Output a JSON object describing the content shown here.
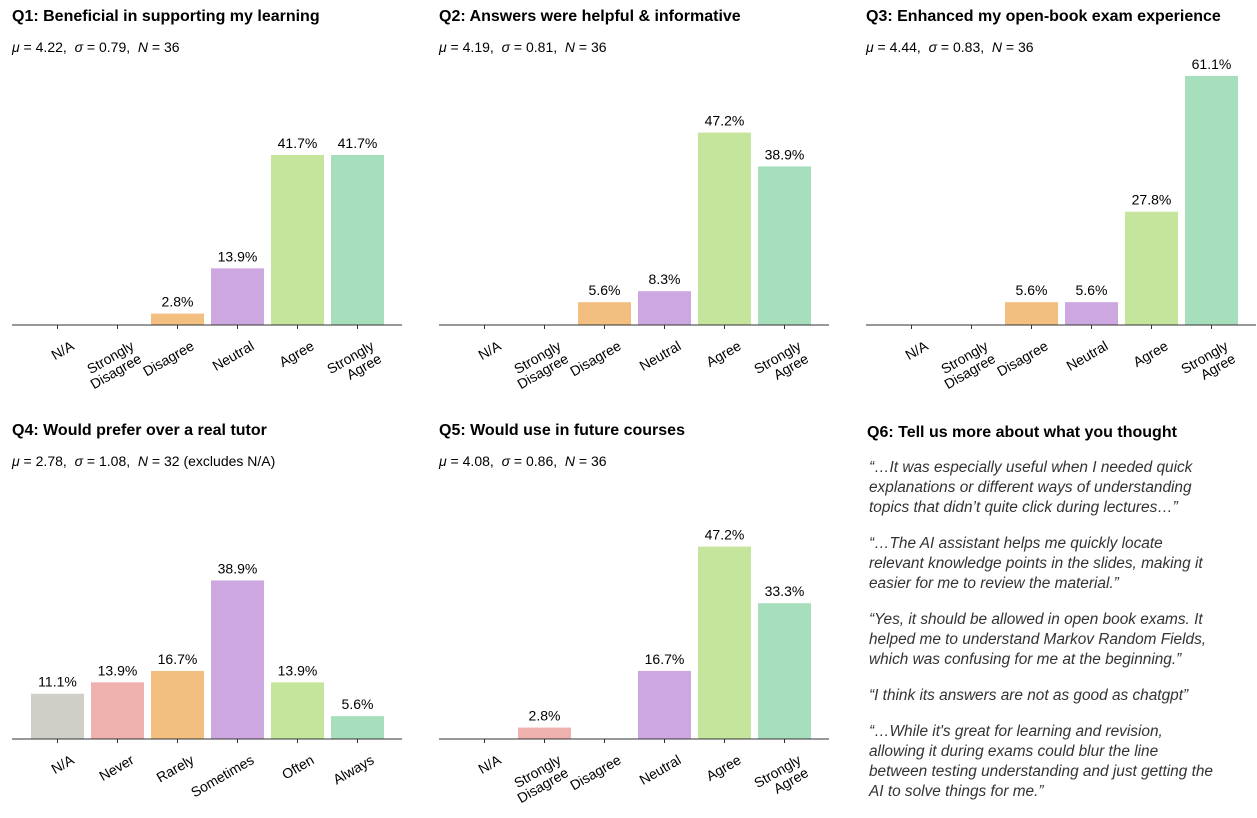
{
  "chart_data": [
    {
      "type": "bar",
      "title": "Q1: Beneficial in supporting my learning",
      "stats": {
        "mu": "4.22",
        "sigma": "0.79",
        "N": "36",
        "note": ""
      },
      "categories": [
        "N/A",
        "Strongly\nDisagree",
        "Disagree",
        "Neutral",
        "Agree",
        "Strongly\nAgree"
      ],
      "values": [
        0,
        0,
        2.8,
        13.9,
        41.7,
        41.7
      ],
      "value_labels": [
        "",
        "",
        "2.8%",
        "13.9%",
        "41.7%",
        "41.7%"
      ],
      "colors": [
        "#cfcfc8",
        "#eeb1ae",
        "#f2bf80",
        "#cda8e0",
        "#c6e59c",
        "#a7dfbc"
      ],
      "ylim": [
        0,
        65
      ],
      "grid": false,
      "legend": false
    },
    {
      "type": "bar",
      "title": "Q2: Answers were helpful & informative",
      "stats": {
        "mu": "4.19",
        "sigma": "0.81",
        "N": "36",
        "note": ""
      },
      "categories": [
        "N/A",
        "Strongly\nDisagree",
        "Disagree",
        "Neutral",
        "Agree",
        "Strongly\nAgree"
      ],
      "values": [
        0,
        0,
        5.6,
        8.3,
        47.2,
        38.9
      ],
      "value_labels": [
        "",
        "",
        "5.6%",
        "8.3%",
        "47.2%",
        "38.9%"
      ],
      "colors": [
        "#cfcfc8",
        "#eeb1ae",
        "#f2bf80",
        "#cda8e0",
        "#c6e59c",
        "#a7dfbc"
      ],
      "ylim": [
        0,
        65
      ],
      "grid": false,
      "legend": false
    },
    {
      "type": "bar",
      "title": "Q3: Enhanced my open-book exam experience",
      "stats": {
        "mu": "4.44",
        "sigma": "0.83",
        "N": "36",
        "note": ""
      },
      "categories": [
        "N/A",
        "Strongly\nDisagree",
        "Disagree",
        "Neutral",
        "Agree",
        "Strongly\nAgree"
      ],
      "values": [
        0,
        0,
        5.6,
        5.6,
        27.8,
        61.1
      ],
      "value_labels": [
        "",
        "",
        "5.6%",
        "5.6%",
        "27.8%",
        "61.1%"
      ],
      "colors": [
        "#cfcfc8",
        "#eeb1ae",
        "#f2bf80",
        "#cda8e0",
        "#c6e59c",
        "#a7dfbc"
      ],
      "ylim": [
        0,
        65
      ],
      "grid": false,
      "legend": false
    },
    {
      "type": "bar",
      "title": "Q4: Would prefer over a real tutor",
      "stats": {
        "mu": "2.78",
        "sigma": "1.08",
        "N": "32",
        "note": "(excludes N/A)"
      },
      "categories": [
        "N/A",
        "Never",
        "Rarely",
        "Sometimes",
        "Often",
        "Always"
      ],
      "values": [
        11.1,
        13.9,
        16.7,
        38.9,
        13.9,
        5.6
      ],
      "value_labels": [
        "11.1%",
        "13.9%",
        "16.7%",
        "38.9%",
        "13.9%",
        "5.6%"
      ],
      "colors": [
        "#cfcfc8",
        "#eeb1ae",
        "#f2bf80",
        "#cda8e0",
        "#c6e59c",
        "#a7dfbc"
      ],
      "ylim": [
        0,
        65
      ],
      "grid": false,
      "legend": false
    },
    {
      "type": "bar",
      "title": "Q5: Would use in future courses",
      "stats": {
        "mu": "4.08",
        "sigma": "0.86",
        "N": "36",
        "note": ""
      },
      "categories": [
        "N/A",
        "Strongly\nDisagree",
        "Disagree",
        "Neutral",
        "Agree",
        "Strongly\nAgree"
      ],
      "values": [
        0,
        2.8,
        0,
        16.7,
        47.2,
        33.3
      ],
      "value_labels": [
        "",
        "2.8%",
        "",
        "16.7%",
        "47.2%",
        "33.3%"
      ],
      "colors": [
        "#cfcfc8",
        "#eeb1ae",
        "#f2bf80",
        "#cda8e0",
        "#c6e59c",
        "#a7dfbc"
      ],
      "ylim": [
        0,
        65
      ],
      "grid": false,
      "legend": false
    }
  ],
  "q6": {
    "title": "Q6: Tell us more about what you thought",
    "quotes": [
      "“…It was especially useful when I needed quick\nexplanations or different ways of understanding\ntopics that didn’t quite click during lectures…”",
      "“…The AI assistant helps me quickly locate\nrelevant knowledge points in the slides, making it\neasier for me to review the material.”",
      "“Yes, it should be allowed in open book exams. It\nhelped me to understand Markov Random Fields,\nwhich was confusing for me at the beginning.”",
      "“I think its answers are not as good as chatgpt”",
      "“…While it's great for learning and revision,\nallowing it during exams could blur the line\nbetween testing understanding and just getting the\nAI to solve things for me.”"
    ]
  }
}
